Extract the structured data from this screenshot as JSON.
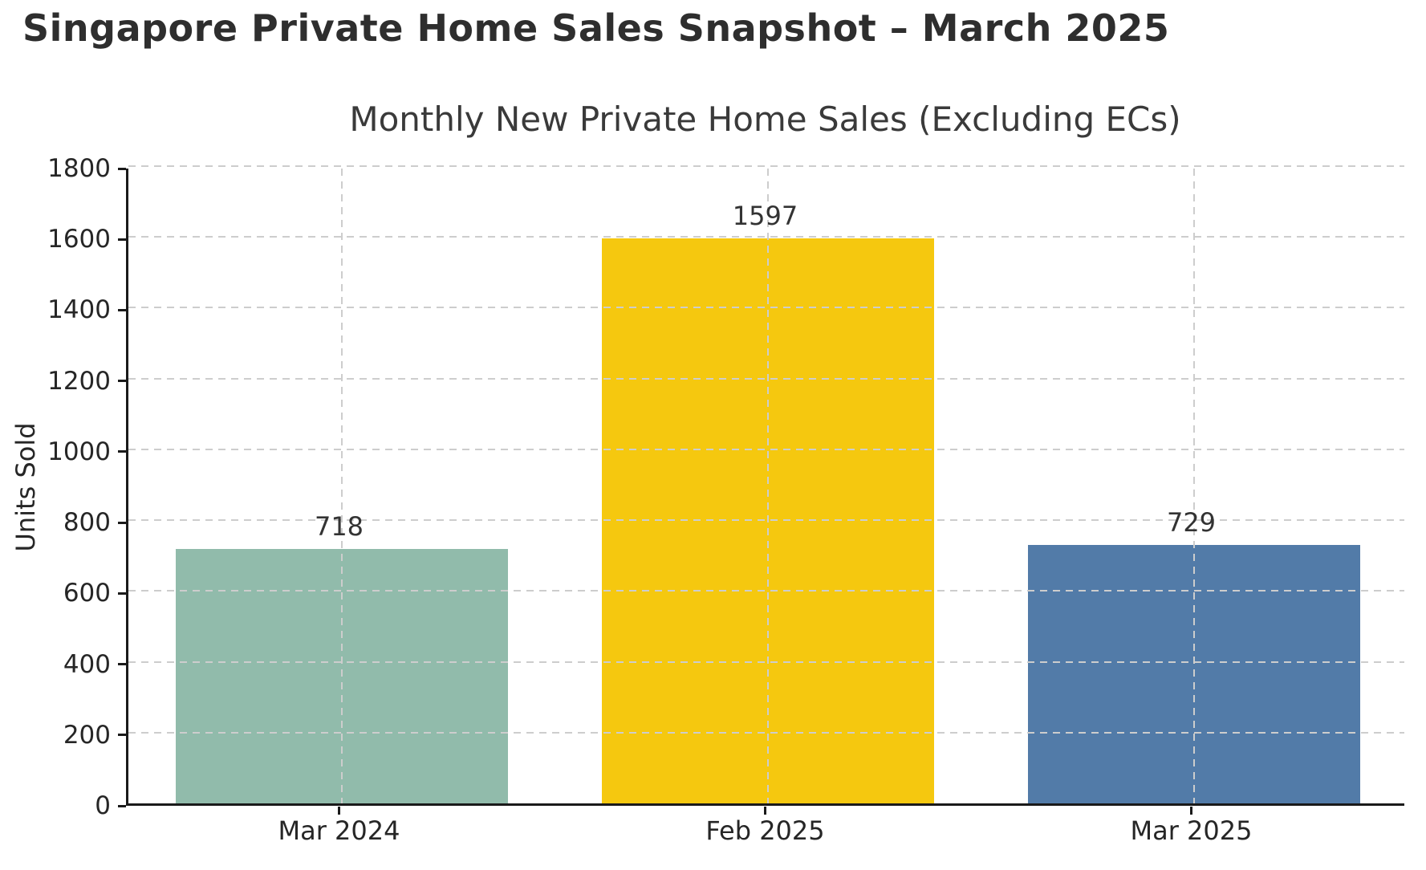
{
  "header": {
    "title": "Singapore Private Home Sales Snapshot – March 2025"
  },
  "chart_data": {
    "type": "bar",
    "title": "Monthly New Private Home Sales (Excluding ECs)",
    "categories": [
      "Mar 2024",
      "Feb 2025",
      "Mar 2025"
    ],
    "values": [
      718,
      1597,
      729
    ],
    "value_labels": [
      "718",
      "1597",
      "729"
    ],
    "bar_colors": [
      "#91bbab",
      "#f5c80f",
      "#527ba8"
    ],
    "xlabel": "",
    "ylabel": "Units Sold",
    "ylim": [
      0,
      1800
    ],
    "yticks": [
      0,
      200,
      400,
      600,
      800,
      1000,
      1200,
      1400,
      1600,
      1800
    ],
    "grid": {
      "style": "dashed",
      "color": "#cdcdcd",
      "above_bars": true
    },
    "legend": "none",
    "spine_color": "#1a1a1a",
    "background": "#ffffff"
  }
}
